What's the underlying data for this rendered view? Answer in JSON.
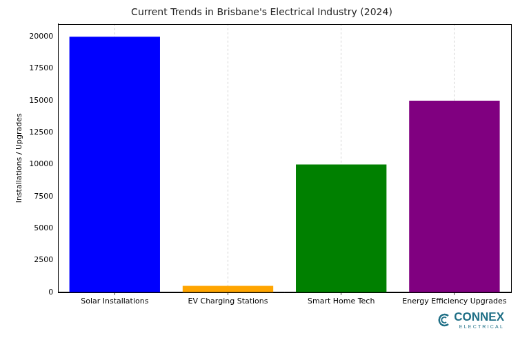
{
  "chart_data": {
    "type": "bar",
    "title": "Current Trends in Brisbane's Electrical Industry (2024)",
    "y_label": "Installations / Upgrades",
    "categories": [
      "Solar Installations",
      "EV Charging Stations",
      "Smart Home Tech",
      "Energy Efficiency Upgrades"
    ],
    "values": [
      20000,
      500,
      10000,
      15000
    ],
    "colors": [
      "#0000ff",
      "#ffa500",
      "#008000",
      "#800080"
    ],
    "ylim": [
      0,
      21000
    ],
    "yticks": [
      0,
      2500,
      5000,
      7500,
      10000,
      12500,
      15000,
      17500,
      20000
    ],
    "grid": "x",
    "annotations": [
      "CONNEX",
      "ELECTRICAL"
    ]
  }
}
